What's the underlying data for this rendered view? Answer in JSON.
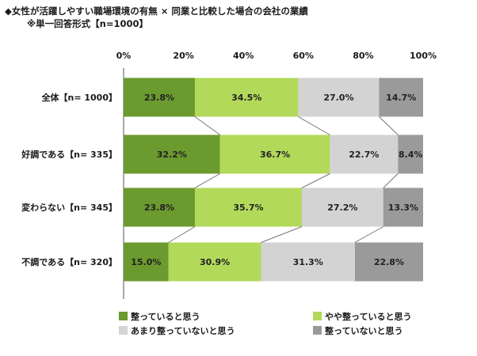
{
  "title_lines": [
    "◆女性が活躍しやすい職場環境の有無 × 同業と比較した場合の会社の業績",
    "※単一回答形式【n=1000】"
  ],
  "chart_data": {
    "type": "bar",
    "orientation": "horizontal",
    "stacked": true,
    "xlim": [
      0,
      100
    ],
    "ticks": [
      "0%",
      "20%",
      "40%",
      "60%",
      "80%",
      "100%"
    ],
    "tick_values": [
      0,
      20,
      40,
      60,
      80,
      100
    ],
    "categories": [
      "全体【n= 1000】",
      "好調である【n= 335】",
      "変わらない【n= 345】",
      "不調である【n= 320】"
    ],
    "series": [
      {
        "name": "整っていると思う",
        "color": "#6b9a2e",
        "values": [
          23.8,
          32.2,
          23.8,
          15.0
        ]
      },
      {
        "name": "やや整っていると思う",
        "color": "#b3d95a",
        "values": [
          34.5,
          36.7,
          35.7,
          30.9
        ]
      },
      {
        "name": "あまり整っていないと思う",
        "color": "#d3d3d3",
        "values": [
          27.0,
          22.7,
          27.2,
          31.3
        ]
      },
      {
        "name": "整っていないと思う",
        "color": "#9a9a9a",
        "values": [
          14.7,
          8.4,
          13.3,
          22.8
        ]
      }
    ],
    "value_labels": [
      [
        "23.8%",
        "34.5%",
        "27.0%",
        "14.7%"
      ],
      [
        "32.2%",
        "36.7%",
        "22.7%",
        "8.4%"
      ],
      [
        "23.8%",
        "35.7%",
        "27.2%",
        "13.3%"
      ],
      [
        "15.0%",
        "30.9%",
        "31.3%",
        "22.8%"
      ]
    ],
    "grid": false,
    "connector_lines": true,
    "legend_position": "bottom"
  }
}
